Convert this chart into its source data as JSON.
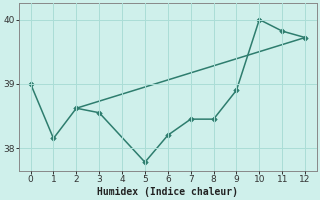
{
  "xlabel": "Humidex (Indice chaleur)",
  "x": [
    0,
    1,
    2,
    3,
    4,
    5,
    6,
    7,
    8,
    9,
    10,
    11,
    12
  ],
  "line1_y": [
    39.0,
    38.15,
    38.62,
    38.55,
    null,
    37.78,
    38.2,
    38.45,
    38.45,
    38.9,
    40.0,
    39.82,
    39.72
  ],
  "line2_x": [
    2,
    12
  ],
  "line2_y": [
    38.62,
    39.72
  ],
  "line_color": "#2e7d6e",
  "bg_color": "#cff0eb",
  "grid_color": "#aaddd6",
  "ylim": [
    37.65,
    40.25
  ],
  "xlim": [
    -0.5,
    12.5
  ],
  "yticks": [
    38,
    39,
    40
  ],
  "xticks": [
    0,
    1,
    2,
    3,
    4,
    5,
    6,
    7,
    8,
    9,
    10,
    11,
    12
  ],
  "markersize": 2.8,
  "linewidth": 1.1,
  "tick_fontsize": 6.5,
  "xlabel_fontsize": 7.0
}
